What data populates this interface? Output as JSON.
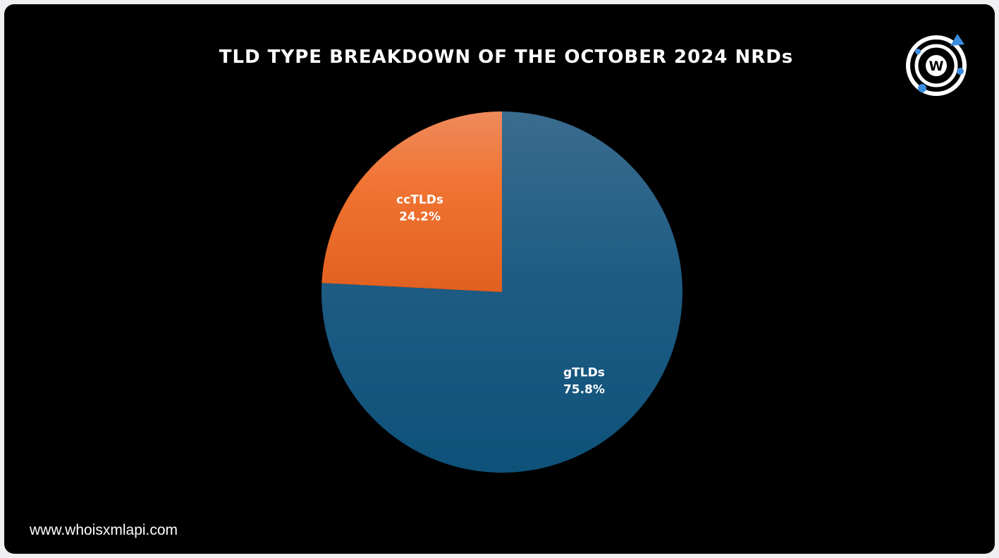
{
  "chart_data": {
    "type": "pie",
    "title": "TLD TYPE BREAKDOWN OF THE OCTOBER 2024 NRDs",
    "categories": [
      "gTLDs",
      "ccTLDs"
    ],
    "values": [
      75.8,
      24.2
    ],
    "value_labels": [
      "75.8%",
      "24.2%"
    ],
    "colors": [
      "#1f5c84",
      "#ec6a2c"
    ],
    "start": "12 o'clock",
    "direction": "clockwise"
  },
  "footer": {
    "website": "www.whoisxmlapi.com"
  },
  "logo": {
    "letter": "W",
    "icon": "whoisxmlapi-logo-icon"
  }
}
